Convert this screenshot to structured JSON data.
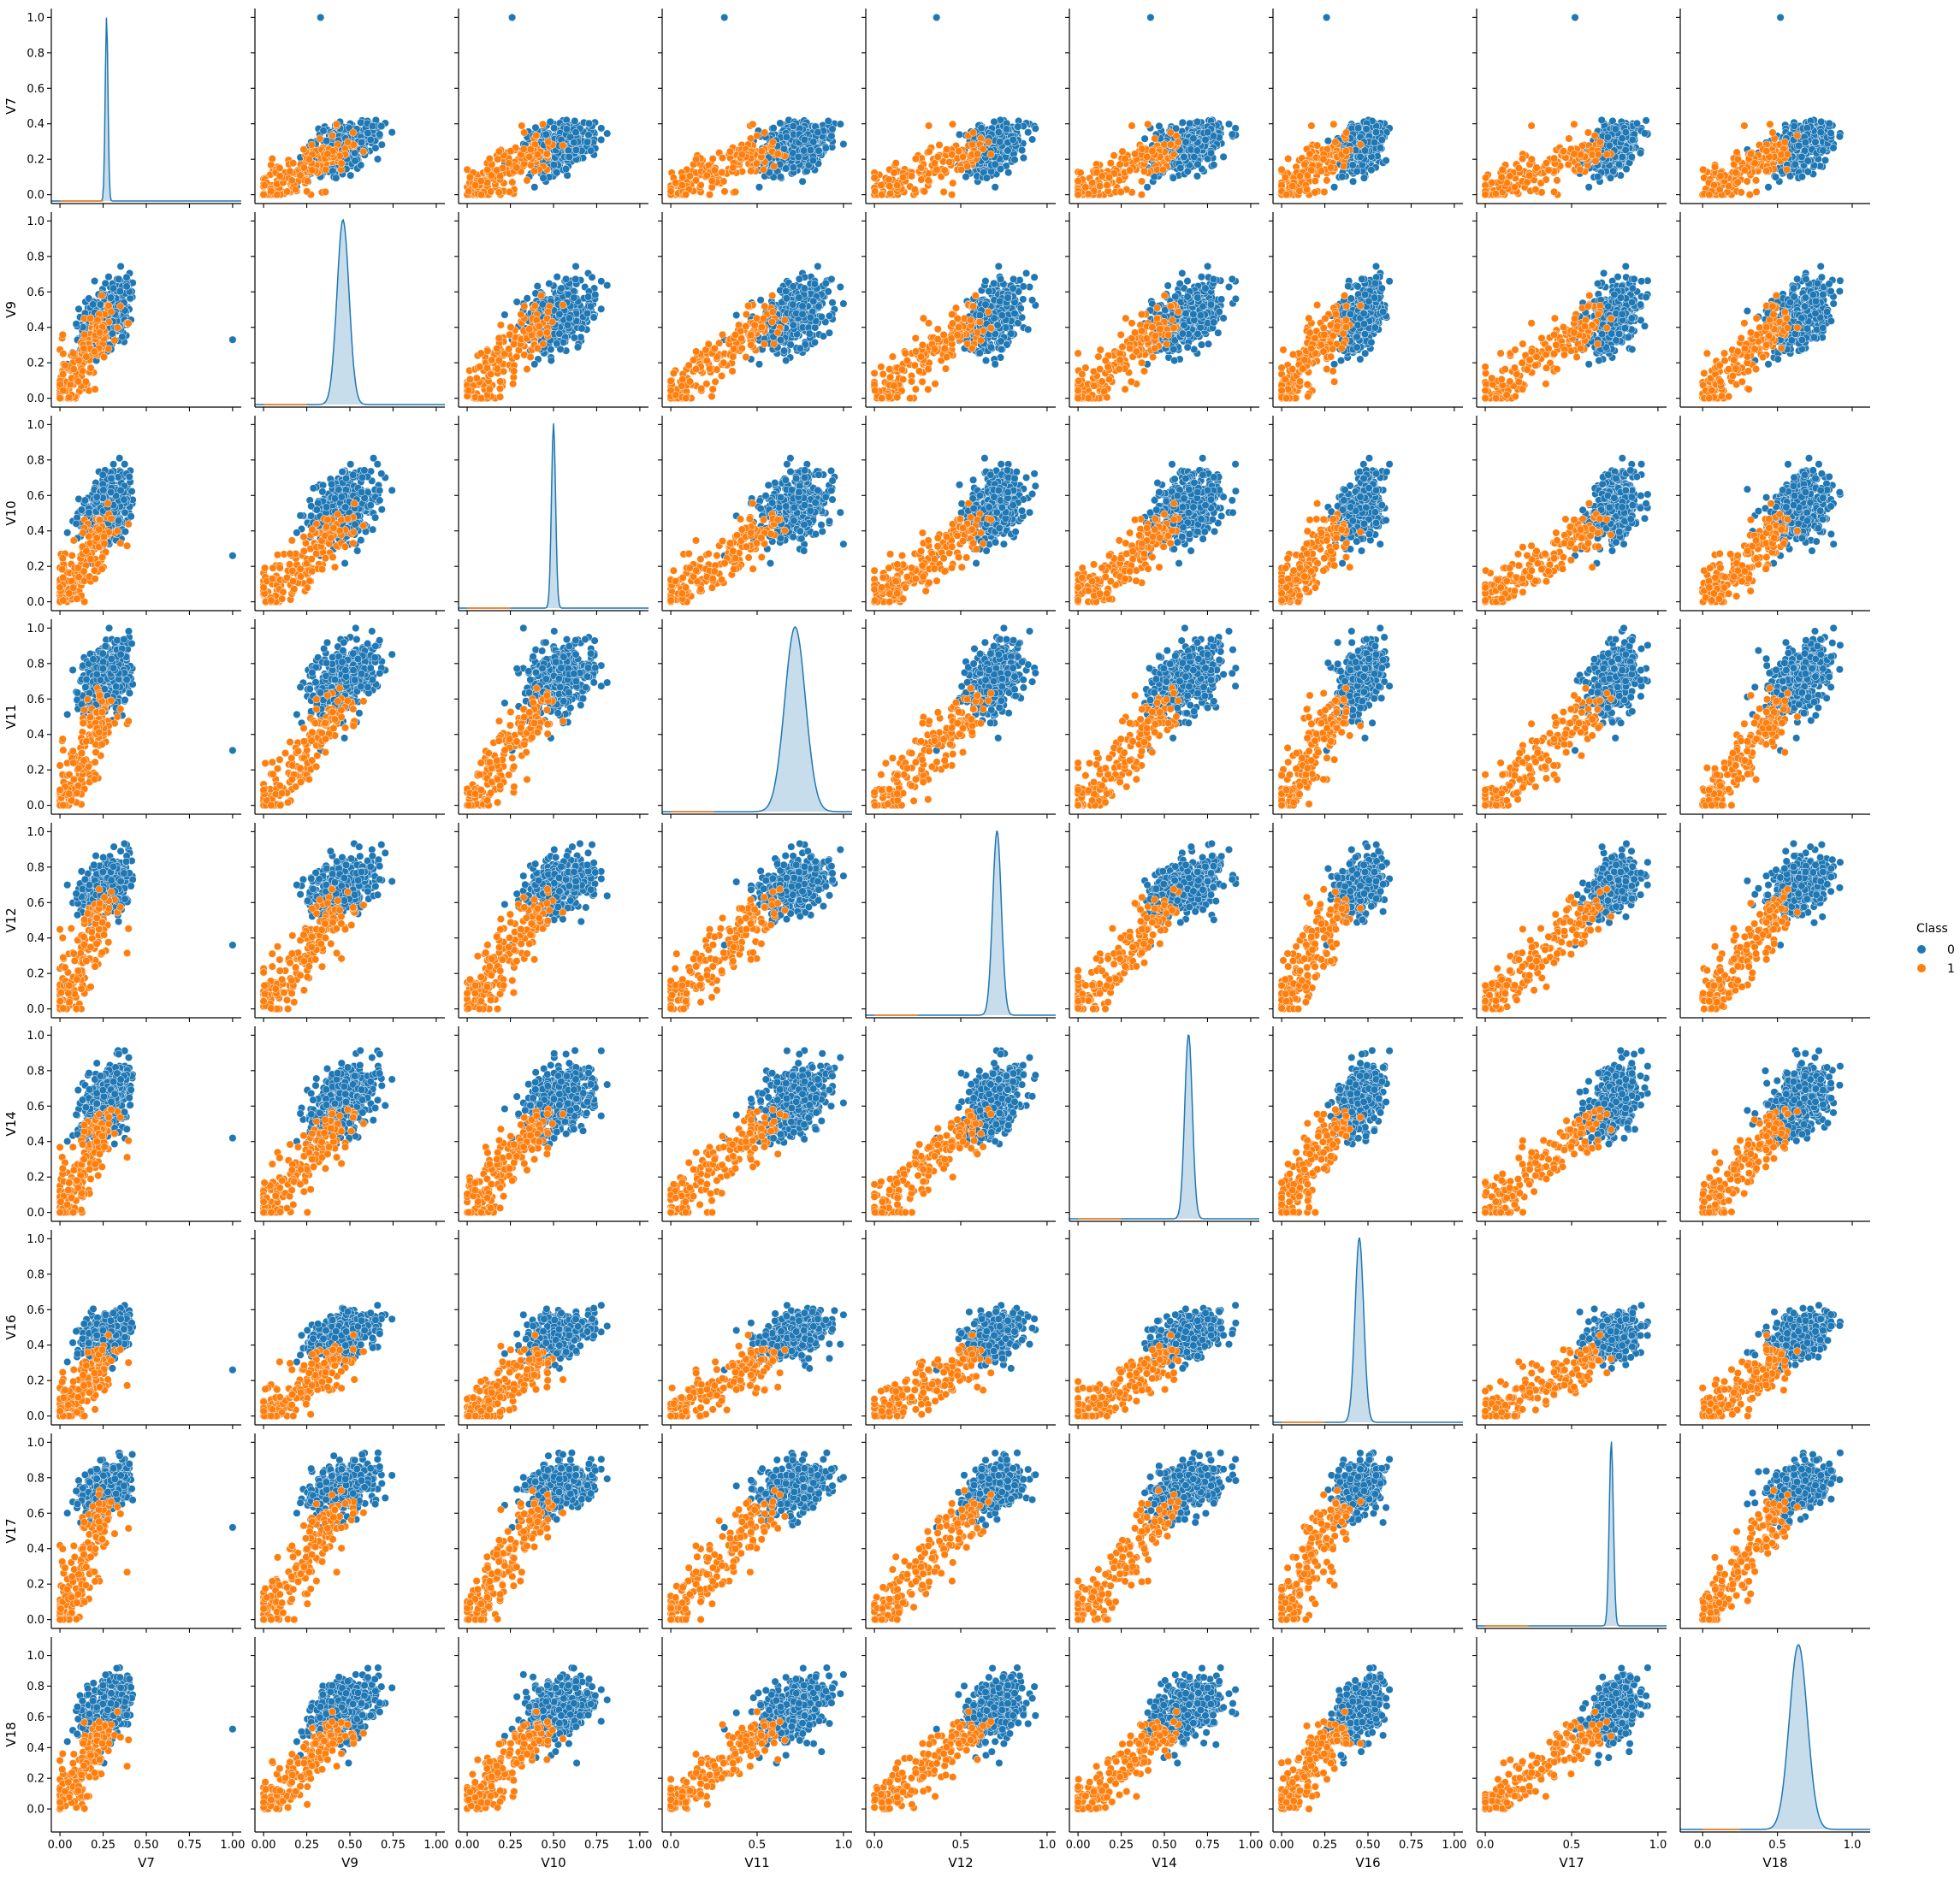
{
  "chart_data": {
    "type": "scatter",
    "subtype": "pairplot",
    "variables": [
      "V7",
      "V9",
      "V10",
      "V11",
      "V12",
      "V14",
      "V16",
      "V17",
      "V18"
    ],
    "hue": "Class",
    "legend": {
      "title": "Class",
      "placement": "right",
      "entries": [
        {
          "label": "0",
          "color": "#1f77b4"
        },
        {
          "label": "1",
          "color": "#ff7f0e"
        }
      ]
    },
    "colors": {
      "class_0": "#1f77b4",
      "class_1": "#ff7f0e"
    },
    "diagonal": "kde",
    "grid": false,
    "axes": {
      "V7": {
        "lim": [
          -0.05,
          1.05
        ],
        "ticks": [
          "0.00",
          "0.25",
          "0.50",
          "0.75",
          "1.00"
        ],
        "yticks": [
          "0.0",
          "0.2",
          "0.4",
          "0.6",
          "0.8",
          "1.0"
        ]
      },
      "V9": {
        "lim": [
          -0.05,
          1.05
        ],
        "ticks": [
          "0.00",
          "0.25",
          "0.50",
          "0.75",
          "1.00"
        ],
        "yticks": [
          "0.0",
          "0.2",
          "0.4",
          "0.6",
          "0.8",
          "1.0"
        ]
      },
      "V10": {
        "lim": [
          -0.05,
          1.05
        ],
        "ticks": [
          "0.00",
          "0.25",
          "0.50",
          "0.75",
          "1.00"
        ],
        "yticks": [
          "0.0",
          "0.2",
          "0.4",
          "0.6",
          "0.8",
          "1.0"
        ]
      },
      "V11": {
        "lim": [
          -0.05,
          1.05
        ],
        "ticks": [
          "0.0",
          "0.5",
          "1.0"
        ],
        "yticks": [
          "0.0",
          "0.2",
          "0.4",
          "0.6",
          "0.8",
          "1.0"
        ]
      },
      "V12": {
        "lim": [
          -0.05,
          1.05
        ],
        "ticks": [
          "0.0",
          "0.5",
          "1.0"
        ],
        "yticks": [
          "0.0",
          "0.2",
          "0.4",
          "0.6",
          "0.8",
          "1.0"
        ]
      },
      "V14": {
        "lim": [
          -0.05,
          1.05
        ],
        "ticks": [
          "0.00",
          "0.25",
          "0.50",
          "0.75",
          "1.00"
        ],
        "yticks": [
          "0.0",
          "0.2",
          "0.4",
          "0.6",
          "0.8",
          "1.0"
        ]
      },
      "V16": {
        "lim": [
          -0.05,
          1.05
        ],
        "ticks": [
          "0.00",
          "0.25",
          "0.50",
          "0.75",
          "1.00"
        ],
        "yticks": [
          "0.0",
          "0.2",
          "0.4",
          "0.6",
          "0.8",
          "1.0"
        ]
      },
      "V17": {
        "lim": [
          -0.05,
          1.05
        ],
        "ticks": [
          "0.0",
          "0.5",
          "1.0"
        ],
        "yticks": [
          "0.0",
          "0.2",
          "0.4",
          "0.6",
          "0.8",
          "1.0"
        ]
      },
      "V18": {
        "lim": [
          -0.15,
          1.12
        ],
        "ticks": [
          "0.0",
          "0.5",
          "1.0"
        ],
        "yticks": [
          "0.0",
          "0.2",
          "0.4",
          "0.6",
          "0.8",
          "1.0"
        ]
      }
    },
    "class_0_center": {
      "V7": 0.27,
      "V9": 0.47,
      "V10": 0.53,
      "V11": 0.72,
      "V12": 0.7,
      "V14": 0.64,
      "V16": 0.46,
      "V17": 0.75,
      "V18": 0.65
    },
    "class_0_spread": {
      "V7": 0.07,
      "V9": 0.1,
      "V10": 0.1,
      "V11": 0.1,
      "V12": 0.08,
      "V14": 0.1,
      "V16": 0.07,
      "V17": 0.07,
      "V18": 0.1
    },
    "class_0_outlier": {
      "V7": 1.0,
      "V9": 0.33,
      "V10": 0.26,
      "V11": 0.31,
      "V12": 0.36,
      "V14": 0.42,
      "V16": 0.26,
      "V17": 0.52,
      "V18": 0.52
    },
    "class_1_low": {
      "V7": 0.0,
      "V9": 0.0,
      "V10": 0.0,
      "V11": 0.0,
      "V12": 0.0,
      "V14": 0.0,
      "V16": 0.0,
      "V17": 0.0,
      "V18": 0.0
    },
    "class_1_high": {
      "V7": 0.27,
      "V9": 0.46,
      "V10": 0.44,
      "V11": 0.58,
      "V12": 0.58,
      "V14": 0.52,
      "V16": 0.33,
      "V17": 0.66,
      "V18": 0.55
    },
    "kde_peaks": {
      "V7": 0.27,
      "V9": 0.46,
      "V10": 0.5,
      "V11": 0.72,
      "V12": 0.71,
      "V14": 0.64,
      "V16": 0.45,
      "V17": 0.73,
      "V18": 0.64
    },
    "kde_widths": {
      "V7": 0.008,
      "V9": 0.035,
      "V10": 0.012,
      "V11": 0.06,
      "V12": 0.025,
      "V14": 0.022,
      "V16": 0.025,
      "V17": 0.012,
      "V18": 0.06
    }
  }
}
